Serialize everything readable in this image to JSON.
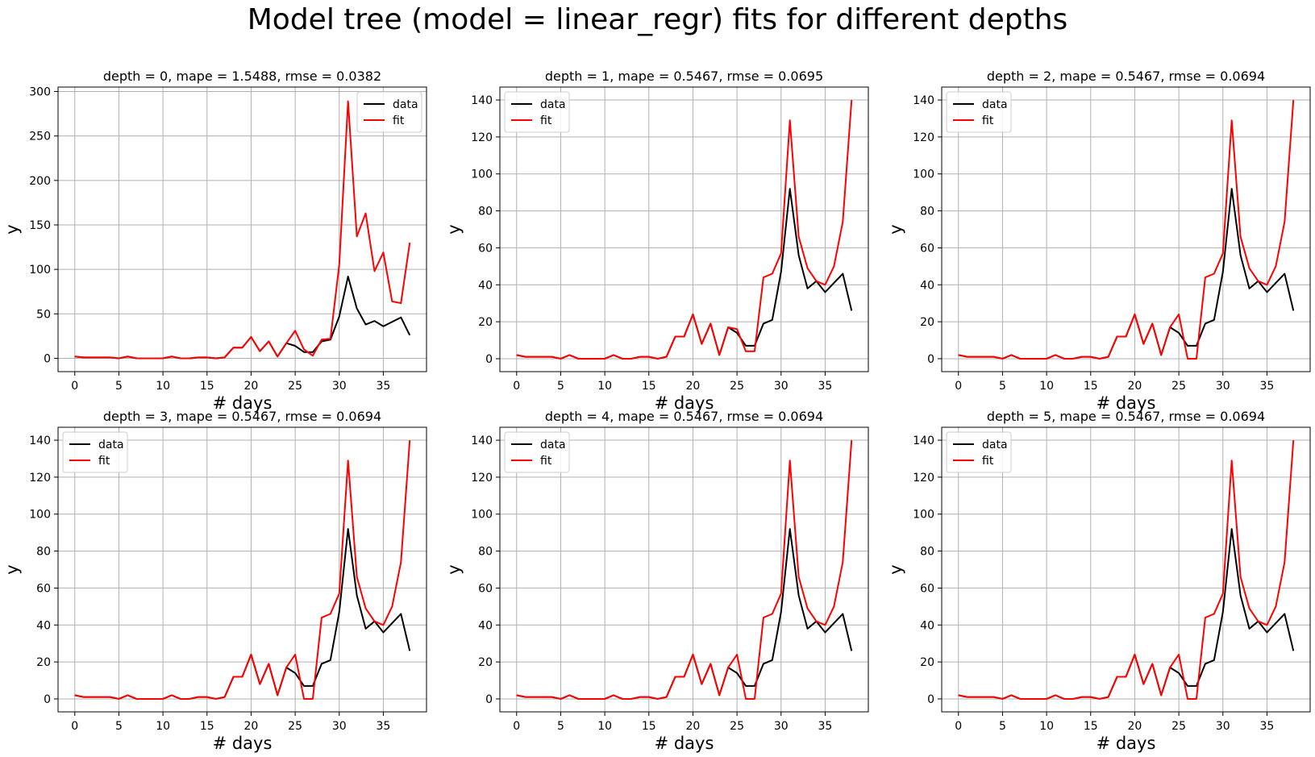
{
  "figure": {
    "title": "Model tree (model = linear_regr) fits for different depths"
  },
  "colors": {
    "data": "#000000",
    "fit": "#ff0000",
    "grid": "#b0b0b0",
    "legend_border": "#cccccc"
  },
  "chart_data": [
    {
      "type": "line",
      "title": "depth = 0, mape = 1.5488, rmse = 0.0382",
      "xlabel": "# days",
      "ylabel": "y",
      "xlim": [
        -1.9,
        39.9
      ],
      "ylim": [
        -15,
        305
      ],
      "xticks": [
        0,
        5,
        10,
        15,
        20,
        25,
        30,
        35
      ],
      "yticks": [
        0,
        50,
        100,
        150,
        200,
        250,
        300
      ],
      "grid": true,
      "legend": "upper right",
      "series": [
        {
          "name": "data",
          "color": "#000000",
          "x": [
            0,
            1,
            2,
            3,
            4,
            5,
            6,
            7,
            8,
            9,
            10,
            11,
            12,
            13,
            14,
            15,
            16,
            17,
            18,
            19,
            20,
            21,
            22,
            23,
            24,
            25,
            26,
            27,
            28,
            29,
            30,
            31,
            32,
            33,
            34,
            35,
            36,
            37,
            38
          ],
          "y": [
            2,
            1,
            1,
            1,
            1,
            0,
            2,
            0,
            0,
            0,
            0,
            2,
            0,
            0,
            1,
            1,
            0,
            1,
            12,
            12,
            24,
            8,
            19,
            2,
            17,
            14,
            7,
            7,
            19,
            21,
            47,
            92,
            56,
            38,
            42,
            36,
            41,
            46,
            26
          ]
        },
        {
          "name": "fit",
          "color": "#ff0000",
          "x": [
            0,
            1,
            2,
            3,
            4,
            5,
            6,
            7,
            8,
            9,
            10,
            11,
            12,
            13,
            14,
            15,
            16,
            17,
            18,
            19,
            20,
            21,
            22,
            23,
            24,
            25,
            26,
            27,
            28,
            29,
            30,
            31,
            32,
            33,
            34,
            35,
            36,
            37,
            38
          ],
          "y": [
            2,
            1,
            1,
            1,
            1,
            0,
            2,
            0,
            0,
            0,
            0,
            2,
            0,
            0,
            1,
            1,
            0,
            1,
            12,
            12,
            24,
            8,
            19,
            2,
            17,
            31,
            10,
            3,
            21,
            22,
            105,
            289,
            137,
            163,
            98,
            119,
            64,
            62,
            130
          ]
        }
      ]
    },
    {
      "type": "line",
      "title": "depth = 1, mape = 0.5467, rmse = 0.0695",
      "xlabel": "# days",
      "ylabel": "y",
      "xlim": [
        -1.9,
        39.9
      ],
      "ylim": [
        -7,
        147
      ],
      "xticks": [
        0,
        5,
        10,
        15,
        20,
        25,
        30,
        35
      ],
      "yticks": [
        0,
        20,
        40,
        60,
        80,
        100,
        120,
        140
      ],
      "grid": true,
      "legend": "upper left",
      "series": [
        {
          "name": "data",
          "color": "#000000",
          "x": [
            0,
            1,
            2,
            3,
            4,
            5,
            6,
            7,
            8,
            9,
            10,
            11,
            12,
            13,
            14,
            15,
            16,
            17,
            18,
            19,
            20,
            21,
            22,
            23,
            24,
            25,
            26,
            27,
            28,
            29,
            30,
            31,
            32,
            33,
            34,
            35,
            36,
            37,
            38
          ],
          "y": [
            2,
            1,
            1,
            1,
            1,
            0,
            2,
            0,
            0,
            0,
            0,
            2,
            0,
            0,
            1,
            1,
            0,
            1,
            12,
            12,
            24,
            8,
            19,
            2,
            17,
            14,
            7,
            7,
            19,
            21,
            47,
            92,
            56,
            38,
            42,
            36,
            41,
            46,
            26
          ]
        },
        {
          "name": "fit",
          "color": "#ff0000",
          "x": [
            0,
            1,
            2,
            3,
            4,
            5,
            6,
            7,
            8,
            9,
            10,
            11,
            12,
            13,
            14,
            15,
            16,
            17,
            18,
            19,
            20,
            21,
            22,
            23,
            24,
            25,
            26,
            27,
            28,
            29,
            30,
            31,
            32,
            33,
            34,
            35,
            36,
            37,
            38
          ],
          "y": [
            2,
            1,
            1,
            1,
            1,
            0,
            2,
            0,
            0,
            0,
            0,
            2,
            0,
            0,
            1,
            1,
            0,
            1,
            12,
            12,
            24,
            8,
            19,
            2,
            17,
            16,
            4,
            4,
            44,
            46,
            57,
            129,
            66,
            49,
            42,
            40,
            50,
            74,
            140
          ]
        }
      ]
    },
    {
      "type": "line",
      "title": "depth = 2, mape = 0.5467, rmse = 0.0694",
      "xlabel": "# days",
      "ylabel": "y",
      "xlim": [
        -1.9,
        39.9
      ],
      "ylim": [
        -7,
        147
      ],
      "xticks": [
        0,
        5,
        10,
        15,
        20,
        25,
        30,
        35
      ],
      "yticks": [
        0,
        20,
        40,
        60,
        80,
        100,
        120,
        140
      ],
      "grid": true,
      "legend": "upper left",
      "series": [
        {
          "name": "data",
          "color": "#000000",
          "x": [
            0,
            1,
            2,
            3,
            4,
            5,
            6,
            7,
            8,
            9,
            10,
            11,
            12,
            13,
            14,
            15,
            16,
            17,
            18,
            19,
            20,
            21,
            22,
            23,
            24,
            25,
            26,
            27,
            28,
            29,
            30,
            31,
            32,
            33,
            34,
            35,
            36,
            37,
            38
          ],
          "y": [
            2,
            1,
            1,
            1,
            1,
            0,
            2,
            0,
            0,
            0,
            0,
            2,
            0,
            0,
            1,
            1,
            0,
            1,
            12,
            12,
            24,
            8,
            19,
            2,
            17,
            14,
            7,
            7,
            19,
            21,
            47,
            92,
            56,
            38,
            42,
            36,
            41,
            46,
            26
          ]
        },
        {
          "name": "fit",
          "color": "#ff0000",
          "x": [
            0,
            1,
            2,
            3,
            4,
            5,
            6,
            7,
            8,
            9,
            10,
            11,
            12,
            13,
            14,
            15,
            16,
            17,
            18,
            19,
            20,
            21,
            22,
            23,
            24,
            25,
            26,
            27,
            28,
            29,
            30,
            31,
            32,
            33,
            34,
            35,
            36,
            37,
            38
          ],
          "y": [
            2,
            1,
            1,
            1,
            1,
            0,
            2,
            0,
            0,
            0,
            0,
            2,
            0,
            0,
            1,
            1,
            0,
            1,
            12,
            12,
            24,
            8,
            19,
            2,
            17,
            24,
            0,
            0,
            44,
            46,
            57,
            129,
            66,
            49,
            42,
            40,
            50,
            74,
            140
          ]
        }
      ]
    },
    {
      "type": "line",
      "title": "depth = 3, mape = 0.5467, rmse = 0.0694",
      "xlabel": "# days",
      "ylabel": "y",
      "xlim": [
        -1.9,
        39.9
      ],
      "ylim": [
        -7,
        147
      ],
      "xticks": [
        0,
        5,
        10,
        15,
        20,
        25,
        30,
        35
      ],
      "yticks": [
        0,
        20,
        40,
        60,
        80,
        100,
        120,
        140
      ],
      "grid": true,
      "legend": "upper left",
      "series": [
        {
          "name": "data",
          "color": "#000000",
          "x": [
            0,
            1,
            2,
            3,
            4,
            5,
            6,
            7,
            8,
            9,
            10,
            11,
            12,
            13,
            14,
            15,
            16,
            17,
            18,
            19,
            20,
            21,
            22,
            23,
            24,
            25,
            26,
            27,
            28,
            29,
            30,
            31,
            32,
            33,
            34,
            35,
            36,
            37,
            38
          ],
          "y": [
            2,
            1,
            1,
            1,
            1,
            0,
            2,
            0,
            0,
            0,
            0,
            2,
            0,
            0,
            1,
            1,
            0,
            1,
            12,
            12,
            24,
            8,
            19,
            2,
            17,
            14,
            7,
            7,
            19,
            21,
            47,
            92,
            56,
            38,
            42,
            36,
            41,
            46,
            26
          ]
        },
        {
          "name": "fit",
          "color": "#ff0000",
          "x": [
            0,
            1,
            2,
            3,
            4,
            5,
            6,
            7,
            8,
            9,
            10,
            11,
            12,
            13,
            14,
            15,
            16,
            17,
            18,
            19,
            20,
            21,
            22,
            23,
            24,
            25,
            26,
            27,
            28,
            29,
            30,
            31,
            32,
            33,
            34,
            35,
            36,
            37,
            38
          ],
          "y": [
            2,
            1,
            1,
            1,
            1,
            0,
            2,
            0,
            0,
            0,
            0,
            2,
            0,
            0,
            1,
            1,
            0,
            1,
            12,
            12,
            24,
            8,
            19,
            2,
            17,
            24,
            0,
            0,
            44,
            46,
            57,
            129,
            66,
            49,
            42,
            40,
            50,
            74,
            140
          ]
        }
      ]
    },
    {
      "type": "line",
      "title": "depth = 4, mape = 0.5467, rmse = 0.0694",
      "xlabel": "# days",
      "ylabel": "y",
      "xlim": [
        -1.9,
        39.9
      ],
      "ylim": [
        -7,
        147
      ],
      "xticks": [
        0,
        5,
        10,
        15,
        20,
        25,
        30,
        35
      ],
      "yticks": [
        0,
        20,
        40,
        60,
        80,
        100,
        120,
        140
      ],
      "grid": true,
      "legend": "upper left",
      "series": [
        {
          "name": "data",
          "color": "#000000",
          "x": [
            0,
            1,
            2,
            3,
            4,
            5,
            6,
            7,
            8,
            9,
            10,
            11,
            12,
            13,
            14,
            15,
            16,
            17,
            18,
            19,
            20,
            21,
            22,
            23,
            24,
            25,
            26,
            27,
            28,
            29,
            30,
            31,
            32,
            33,
            34,
            35,
            36,
            37,
            38
          ],
          "y": [
            2,
            1,
            1,
            1,
            1,
            0,
            2,
            0,
            0,
            0,
            0,
            2,
            0,
            0,
            1,
            1,
            0,
            1,
            12,
            12,
            24,
            8,
            19,
            2,
            17,
            14,
            7,
            7,
            19,
            21,
            47,
            92,
            56,
            38,
            42,
            36,
            41,
            46,
            26
          ]
        },
        {
          "name": "fit",
          "color": "#ff0000",
          "x": [
            0,
            1,
            2,
            3,
            4,
            5,
            6,
            7,
            8,
            9,
            10,
            11,
            12,
            13,
            14,
            15,
            16,
            17,
            18,
            19,
            20,
            21,
            22,
            23,
            24,
            25,
            26,
            27,
            28,
            29,
            30,
            31,
            32,
            33,
            34,
            35,
            36,
            37,
            38
          ],
          "y": [
            2,
            1,
            1,
            1,
            1,
            0,
            2,
            0,
            0,
            0,
            0,
            2,
            0,
            0,
            1,
            1,
            0,
            1,
            12,
            12,
            24,
            8,
            19,
            2,
            17,
            24,
            0,
            0,
            44,
            46,
            57,
            129,
            66,
            49,
            42,
            40,
            50,
            74,
            140
          ]
        }
      ]
    },
    {
      "type": "line",
      "title": "depth = 5, mape = 0.5467, rmse = 0.0694",
      "xlabel": "# days",
      "ylabel": "y",
      "xlim": [
        -1.9,
        39.9
      ],
      "ylim": [
        -7,
        147
      ],
      "xticks": [
        0,
        5,
        10,
        15,
        20,
        25,
        30,
        35
      ],
      "yticks": [
        0,
        20,
        40,
        60,
        80,
        100,
        120,
        140
      ],
      "grid": true,
      "legend": "upper left",
      "series": [
        {
          "name": "data",
          "color": "#000000",
          "x": [
            0,
            1,
            2,
            3,
            4,
            5,
            6,
            7,
            8,
            9,
            10,
            11,
            12,
            13,
            14,
            15,
            16,
            17,
            18,
            19,
            20,
            21,
            22,
            23,
            24,
            25,
            26,
            27,
            28,
            29,
            30,
            31,
            32,
            33,
            34,
            35,
            36,
            37,
            38
          ],
          "y": [
            2,
            1,
            1,
            1,
            1,
            0,
            2,
            0,
            0,
            0,
            0,
            2,
            0,
            0,
            1,
            1,
            0,
            1,
            12,
            12,
            24,
            8,
            19,
            2,
            17,
            14,
            7,
            7,
            19,
            21,
            47,
            92,
            56,
            38,
            42,
            36,
            41,
            46,
            26
          ]
        },
        {
          "name": "fit",
          "color": "#ff0000",
          "x": [
            0,
            1,
            2,
            3,
            4,
            5,
            6,
            7,
            8,
            9,
            10,
            11,
            12,
            13,
            14,
            15,
            16,
            17,
            18,
            19,
            20,
            21,
            22,
            23,
            24,
            25,
            26,
            27,
            28,
            29,
            30,
            31,
            32,
            33,
            34,
            35,
            36,
            37,
            38
          ],
          "y": [
            2,
            1,
            1,
            1,
            1,
            0,
            2,
            0,
            0,
            0,
            0,
            2,
            0,
            0,
            1,
            1,
            0,
            1,
            12,
            12,
            24,
            8,
            19,
            2,
            17,
            24,
            0,
            0,
            44,
            46,
            57,
            129,
            66,
            49,
            42,
            40,
            50,
            74,
            140
          ]
        }
      ]
    }
  ]
}
